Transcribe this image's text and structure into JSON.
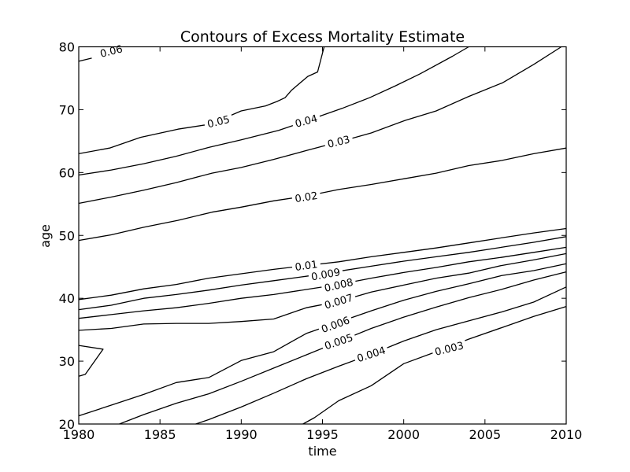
{
  "chart_data": {
    "type": "contour",
    "title": "Contours of Excess Mortality Estimate",
    "xlabel": "time",
    "ylabel": "age",
    "xlim": [
      1980,
      2010
    ],
    "ylim": [
      20,
      80
    ],
    "x_ticks": [
      1980,
      1985,
      1990,
      1995,
      2000,
      2005,
      2010
    ],
    "y_ticks": [
      20,
      30,
      40,
      50,
      60,
      70,
      80
    ],
    "x_tick_labels": [
      "1980",
      "1985",
      "1990",
      "1995",
      "2000",
      "2005",
      "2010"
    ],
    "y_tick_labels": [
      "20",
      "30",
      "40",
      "50",
      "60",
      "70",
      "80"
    ],
    "grid": false,
    "levels": [
      {
        "label": "0.06",
        "points": [
          [
            1980,
            77.7
          ],
          [
            1980.8,
            78.2
          ]
        ],
        "label_at": [
          1982,
          79.3
        ],
        "label_angle": -14
      },
      {
        "label": "0.05",
        "points": [
          [
            1980,
            63.0
          ],
          [
            1981.9,
            63.9
          ],
          [
            1983.8,
            65.6
          ],
          [
            1986.1,
            66.9
          ],
          [
            1988.1,
            67.7
          ],
          [
            1990,
            69.8
          ],
          [
            1991.5,
            70.6
          ],
          [
            1992.2,
            71.3
          ],
          [
            1992.7,
            71.9
          ],
          [
            1993.1,
            73.1
          ],
          [
            1994.1,
            75.3
          ],
          [
            1994.7,
            76.0
          ],
          [
            1995.1,
            80.0
          ]
        ],
        "label_at": [
          1988.6,
          68.1
        ],
        "label_angle": -14
      },
      {
        "label": "0.04",
        "points": [
          [
            1980,
            59.6
          ],
          [
            1982.0,
            60.4
          ],
          [
            1984.0,
            61.4
          ],
          [
            1986.0,
            62.6
          ],
          [
            1988.0,
            64.0
          ],
          [
            1990.0,
            65.2
          ],
          [
            1992.3,
            66.7
          ],
          [
            1994.0,
            68.2
          ],
          [
            1996.2,
            70.2
          ],
          [
            1997.9,
            71.9
          ],
          [
            1999.5,
            73.8
          ],
          [
            2001.0,
            75.7
          ],
          [
            2003.0,
            78.5
          ],
          [
            2004.0,
            80.0
          ]
        ],
        "label_at": [
          1994,
          68.2
        ],
        "label_angle": -15
      },
      {
        "label": "0.03",
        "points": [
          [
            1980,
            55.1
          ],
          [
            1982.0,
            56.1
          ],
          [
            1984.0,
            57.2
          ],
          [
            1986.0,
            58.4
          ],
          [
            1988.2,
            59.9
          ],
          [
            1990.0,
            60.8
          ],
          [
            1992.0,
            62.1
          ],
          [
            1994.0,
            63.5
          ],
          [
            1996.2,
            65.0
          ],
          [
            1998.0,
            66.3
          ],
          [
            2000.1,
            68.3
          ],
          [
            2002.0,
            69.8
          ],
          [
            2004.0,
            72.1
          ],
          [
            2006.1,
            74.3
          ],
          [
            2008.0,
            77.2
          ],
          [
            2009.7,
            80.0
          ]
        ],
        "label_at": [
          1996,
          64.9
        ],
        "label_angle": -14
      },
      {
        "label": "0.02",
        "points": [
          [
            1980,
            49.2
          ],
          [
            1982.0,
            50.1
          ],
          [
            1984.0,
            51.3
          ],
          [
            1986.1,
            52.4
          ],
          [
            1988.2,
            53.7
          ],
          [
            1990.0,
            54.5
          ],
          [
            1992.0,
            55.5
          ],
          [
            1994.1,
            56.3
          ],
          [
            1996.0,
            57.3
          ],
          [
            1998.0,
            58.1
          ],
          [
            2000.0,
            59.0
          ],
          [
            2002.0,
            59.9
          ],
          [
            2004.0,
            61.1
          ],
          [
            2006.0,
            61.9
          ],
          [
            2008.0,
            63.0
          ],
          [
            2010,
            63.9
          ]
        ],
        "label_at": [
          1994,
          56.1
        ],
        "label_angle": -9
      },
      {
        "label": "0.01",
        "points": [
          [
            1980,
            39.8
          ],
          [
            1982.0,
            40.5
          ],
          [
            1984.0,
            41.5
          ],
          [
            1986.0,
            42.2
          ],
          [
            1988.0,
            43.2
          ],
          [
            1990.0,
            43.9
          ],
          [
            1992.0,
            44.6
          ],
          [
            1994.0,
            45.2
          ],
          [
            1996.0,
            45.8
          ],
          [
            1998.0,
            46.6
          ],
          [
            2000.0,
            47.3
          ],
          [
            2002.0,
            48.0
          ],
          [
            2004.0,
            48.8
          ],
          [
            2006.0,
            49.6
          ],
          [
            2008.0,
            50.4
          ],
          [
            2010,
            51.1
          ]
        ],
        "label_at": [
          1994,
          45.2
        ],
        "label_angle": -8
      },
      {
        "label": "0.009",
        "points": [
          [
            1980,
            38.2
          ],
          [
            1982.0,
            38.9
          ],
          [
            1984.0,
            40.0
          ],
          [
            1986.0,
            40.6
          ],
          [
            1988.0,
            41.3
          ],
          [
            1990.0,
            42.1
          ],
          [
            1992.0,
            42.8
          ],
          [
            1994.0,
            43.5
          ],
          [
            1996.0,
            44.3
          ],
          [
            1998.0,
            45.1
          ],
          [
            2000.0,
            45.9
          ],
          [
            2002.0,
            46.6
          ],
          [
            2004.0,
            47.3
          ],
          [
            2006.0,
            48.1
          ],
          [
            2008.0,
            48.9
          ],
          [
            2010,
            49.8
          ]
        ],
        "label_at": [
          1995.2,
          43.8
        ],
        "label_angle": -10
      },
      {
        "label": "0.008",
        "points": [
          [
            1980,
            36.8
          ],
          [
            1982.0,
            37.4
          ],
          [
            1984.0,
            38.0
          ],
          [
            1986.0,
            38.5
          ],
          [
            1988.0,
            39.2
          ],
          [
            1990.0,
            40.0
          ],
          [
            1992.0,
            40.6
          ],
          [
            1994.0,
            41.4
          ],
          [
            1996.0,
            42.2
          ],
          [
            1998.0,
            43.2
          ],
          [
            2000.0,
            44.1
          ],
          [
            2002.0,
            44.9
          ],
          [
            2004.0,
            45.8
          ],
          [
            2006.0,
            46.5
          ],
          [
            2008.0,
            47.3
          ],
          [
            2010,
            48.1
          ]
        ],
        "label_at": [
          1996,
          42.1
        ],
        "label_angle": -13
      },
      {
        "label": "0.007",
        "points": [
          [
            1980,
            34.9
          ],
          [
            1982.0,
            35.2
          ],
          [
            1984.0,
            35.9
          ],
          [
            1986.0,
            36.0
          ],
          [
            1988.0,
            36.0
          ],
          [
            1990.0,
            36.3
          ],
          [
            1992.0,
            36.7
          ],
          [
            1994.0,
            38.5
          ],
          [
            1996.0,
            39.5
          ],
          [
            1998.0,
            41.0
          ],
          [
            2000.0,
            42.1
          ],
          [
            2002.0,
            43.2
          ],
          [
            2004.0,
            44.0
          ],
          [
            2006.0,
            45.2
          ],
          [
            2008.0,
            46.1
          ],
          [
            2010,
            47.1
          ]
        ],
        "label_at": [
          1996,
          39.5
        ],
        "label_angle": -17
      },
      {
        "label": "0.006",
        "points": [
          [
            1980,
            21.3
          ],
          [
            1982.0,
            23.0
          ],
          [
            1984.0,
            24.7
          ],
          [
            1986.0,
            26.6
          ],
          [
            1988.0,
            27.4
          ],
          [
            1990.0,
            30.1
          ],
          [
            1992.0,
            31.5
          ],
          [
            1994.0,
            34.4
          ],
          [
            1996.0,
            36.2
          ],
          [
            1998.0,
            38.0
          ],
          [
            2000.0,
            39.7
          ],
          [
            2002.0,
            41.1
          ],
          [
            2004.0,
            42.3
          ],
          [
            2006.0,
            43.6
          ],
          [
            2008.0,
            44.4
          ],
          [
            2010,
            45.5
          ]
        ],
        "label_at": [
          1995.8,
          35.8
        ],
        "label_angle": -20
      },
      {
        "label": "0.005",
        "points": [
          [
            1982.5,
            20.0
          ],
          [
            1984.0,
            21.5
          ],
          [
            1986.0,
            23.3
          ],
          [
            1988.0,
            24.8
          ],
          [
            1990.0,
            26.8
          ],
          [
            1992.0,
            28.9
          ],
          [
            1994.0,
            31.0
          ],
          [
            1996.0,
            33.1
          ],
          [
            1998.0,
            35.2
          ],
          [
            2000.0,
            37.0
          ],
          [
            2002.0,
            38.6
          ],
          [
            2004.0,
            40.1
          ],
          [
            2006.0,
            41.4
          ],
          [
            2008.0,
            42.9
          ],
          [
            2010,
            44.2
          ]
        ],
        "label_at": [
          1996.0,
          33.1
        ],
        "label_angle": -19
      },
      {
        "label": "0.004",
        "points": [
          [
            1987.2,
            20.0
          ],
          [
            1988.0,
            20.7
          ],
          [
            1990.0,
            22.7
          ],
          [
            1992.0,
            24.9
          ],
          [
            1994.0,
            27.2
          ],
          [
            1996.0,
            29.2
          ],
          [
            1998.0,
            31.1
          ],
          [
            2000.0,
            33.2
          ],
          [
            2002.0,
            35.0
          ],
          [
            2004.0,
            36.4
          ],
          [
            2006.0,
            37.8
          ],
          [
            2008.0,
            39.4
          ],
          [
            2010,
            41.8
          ]
        ],
        "label_at": [
          1998,
          31.1
        ],
        "label_angle": -18
      },
      {
        "label": "0.003",
        "points": [
          [
            1993.8,
            20.0
          ],
          [
            1994.5,
            21.0
          ],
          [
            1996.0,
            23.7
          ],
          [
            1998.0,
            26.1
          ],
          [
            2000.0,
            29.6
          ],
          [
            2002.0,
            31.5
          ],
          [
            2004.0,
            33.5
          ],
          [
            2006.0,
            35.3
          ],
          [
            2008.0,
            37.1
          ],
          [
            2010,
            38.7
          ]
        ],
        "label_at": [
          2002.8,
          32.0
        ],
        "label_angle": -14
      },
      {
        "label": "",
        "points": [
          [
            1980,
            27.6
          ],
          [
            1980.4,
            27.9
          ],
          [
            1981.5,
            31.9
          ],
          [
            1980,
            32.5
          ]
        ]
      }
    ]
  }
}
